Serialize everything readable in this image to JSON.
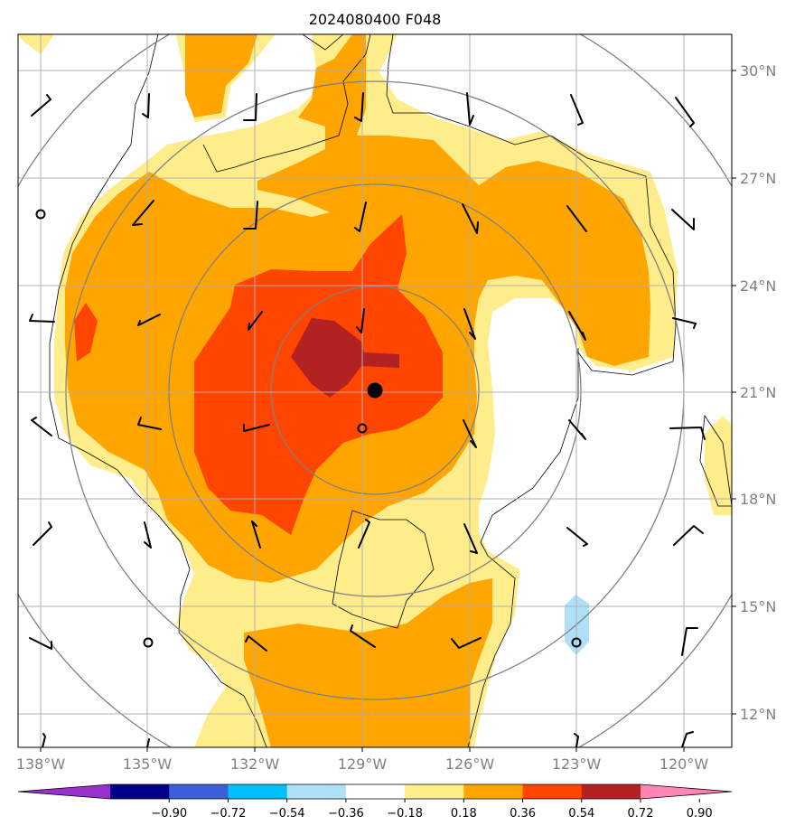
{
  "title": "2024080400 F048",
  "x_ticks": [
    "138°W",
    "135°W",
    "132°W",
    "129°W",
    "126°W",
    "123°W",
    "120°W"
  ],
  "y_ticks": [
    "30°N",
    "27°N",
    "24°N",
    "21°N",
    "18°N",
    "15°N",
    "12°N"
  ],
  "colorbar_ticks": [
    "−0.90",
    "−0.72",
    "−0.54",
    "−0.36",
    "−0.18",
    "0.18",
    "0.36",
    "0.54",
    "0.72",
    "0.90"
  ],
  "colorbar_colors": [
    "#9932cc",
    "#00008b",
    "#3b5fd6",
    "#00bfff",
    "#afe0f8",
    "#ffffff",
    "#ffec8b",
    "#ffa500",
    "#ff4500",
    "#b22222",
    "#ff85b4"
  ],
  "storm_center": {
    "lon": -128.7,
    "lat": 21.0
  }
}
